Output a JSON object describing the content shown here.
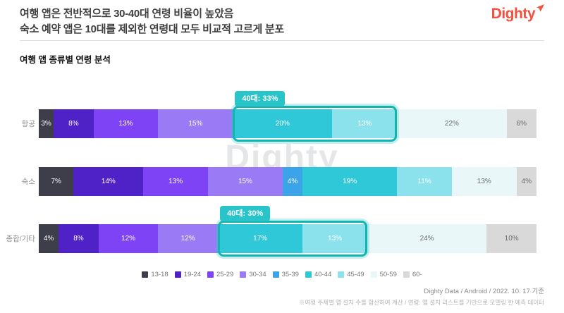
{
  "header": {
    "title_line1": "여행 앱은 전반적으로 30-40대 연령 비율이 높았음",
    "title_line2": "숙소 예약 앱은 10대를 제외한 연령대 모두 비교적 고르게 분포",
    "logo_text": "Dighty"
  },
  "section_title": "여행 앱 종류별 연령 분석",
  "watermark": "Dighty",
  "chart_data": {
    "type": "bar",
    "variant": "horizontal-stacked",
    "unit": "%",
    "title": "여행 앱 종류별 연령 분석",
    "legend_position": "bottom",
    "age_groups": [
      {
        "label": "13-18",
        "color": "#3e3d4a",
        "text_color": "#ffffff"
      },
      {
        "label": "19-24",
        "color": "#4f22c8",
        "text_color": "#ffffff"
      },
      {
        "label": "25-29",
        "color": "#7d43f4",
        "text_color": "#ffffff"
      },
      {
        "label": "30-34",
        "color": "#9b7af6",
        "text_color": "#ffffff"
      },
      {
        "label": "35-39",
        "color": "#3ba4e8",
        "text_color": "#ffffff"
      },
      {
        "label": "40-44",
        "color": "#2fc8d8",
        "text_color": "#ffffff"
      },
      {
        "label": "45-49",
        "color": "#8ce2ec",
        "text_color": "#ffffff"
      },
      {
        "label": "50-59",
        "color": "#e9f7f9",
        "text_color": "#6b6b6b"
      },
      {
        "label": "60-",
        "color": "#d9d9d9",
        "text_color": "#6b6b6b"
      }
    ],
    "rows": [
      {
        "label": "항공",
        "segments": [
          {
            "group": "13-18",
            "value": 3
          },
          {
            "group": "19-24",
            "value": 8
          },
          {
            "group": "25-29",
            "value": 13
          },
          {
            "group": "30-34",
            "value": 15
          },
          {
            "group": "40-44",
            "value": 20
          },
          {
            "group": "45-49",
            "value": 13
          },
          {
            "group": "50-59",
            "value": 22
          },
          {
            "group": "60-",
            "value": 6
          }
        ],
        "highlight": {
          "label": "40대: 33%",
          "start_index": 4,
          "end_index": 5
        }
      },
      {
        "label": "숙소",
        "segments": [
          {
            "group": "13-18",
            "value": 7
          },
          {
            "group": "19-24",
            "value": 14
          },
          {
            "group": "25-29",
            "value": 13
          },
          {
            "group": "30-34",
            "value": 15
          },
          {
            "group": "35-39",
            "value": 4
          },
          {
            "group": "40-44",
            "value": 19
          },
          {
            "group": "45-49",
            "value": 11
          },
          {
            "group": "50-59",
            "value": 13
          },
          {
            "group": "60-",
            "value": 4
          }
        ],
        "highlight": null
      },
      {
        "label": "종합/기타",
        "segments": [
          {
            "group": "13-18",
            "value": 4
          },
          {
            "group": "19-24",
            "value": 8
          },
          {
            "group": "25-29",
            "value": 12
          },
          {
            "group": "30-34",
            "value": 12
          },
          {
            "group": "40-44",
            "value": 17
          },
          {
            "group": "45-49",
            "value": 13
          },
          {
            "group": "50-59",
            "value": 24
          },
          {
            "group": "60-",
            "value": 10
          }
        ],
        "highlight": {
          "label": "40대: 30%",
          "start_index": 4,
          "end_index": 5
        }
      }
    ],
    "highlight_style": {
      "border_color": "#10b5ae",
      "halo_color": "rgba(44,199,205,0.28)",
      "tab_bg": "#28c4c9",
      "tab_text": "#ffffff"
    }
  },
  "footer": {
    "source_line": "Dighty Data / Android / 2022. 10. 17 기준",
    "note_line": "※여행 주제별 앱 설치 수를 합산하여 계산 / 연령: 앱 설치 리스트를 기반으로 모델링 한 예측 데이터"
  }
}
